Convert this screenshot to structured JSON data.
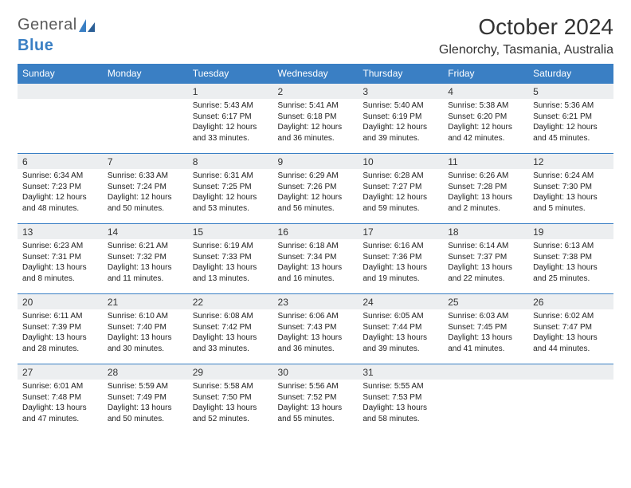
{
  "logo": {
    "word1": "General",
    "word2": "Blue"
  },
  "title": "October 2024",
  "location": "Glenorchy, Tasmania, Australia",
  "colors": {
    "header_bg": "#3a7fc4",
    "header_text": "#ffffff",
    "daynum_bg": "#eceef0",
    "rule": "#3a7fc4",
    "text": "#222222",
    "page_bg": "#ffffff"
  },
  "dayNames": [
    "Sunday",
    "Monday",
    "Tuesday",
    "Wednesday",
    "Thursday",
    "Friday",
    "Saturday"
  ],
  "weeks": [
    [
      null,
      null,
      {
        "n": "1",
        "sr": "5:43 AM",
        "ss": "6:17 PM",
        "dl": "12 hours and 33 minutes."
      },
      {
        "n": "2",
        "sr": "5:41 AM",
        "ss": "6:18 PM",
        "dl": "12 hours and 36 minutes."
      },
      {
        "n": "3",
        "sr": "5:40 AM",
        "ss": "6:19 PM",
        "dl": "12 hours and 39 minutes."
      },
      {
        "n": "4",
        "sr": "5:38 AM",
        "ss": "6:20 PM",
        "dl": "12 hours and 42 minutes."
      },
      {
        "n": "5",
        "sr": "5:36 AM",
        "ss": "6:21 PM",
        "dl": "12 hours and 45 minutes."
      }
    ],
    [
      {
        "n": "6",
        "sr": "6:34 AM",
        "ss": "7:23 PM",
        "dl": "12 hours and 48 minutes."
      },
      {
        "n": "7",
        "sr": "6:33 AM",
        "ss": "7:24 PM",
        "dl": "12 hours and 50 minutes."
      },
      {
        "n": "8",
        "sr": "6:31 AM",
        "ss": "7:25 PM",
        "dl": "12 hours and 53 minutes."
      },
      {
        "n": "9",
        "sr": "6:29 AM",
        "ss": "7:26 PM",
        "dl": "12 hours and 56 minutes."
      },
      {
        "n": "10",
        "sr": "6:28 AM",
        "ss": "7:27 PM",
        "dl": "12 hours and 59 minutes."
      },
      {
        "n": "11",
        "sr": "6:26 AM",
        "ss": "7:28 PM",
        "dl": "13 hours and 2 minutes."
      },
      {
        "n": "12",
        "sr": "6:24 AM",
        "ss": "7:30 PM",
        "dl": "13 hours and 5 minutes."
      }
    ],
    [
      {
        "n": "13",
        "sr": "6:23 AM",
        "ss": "7:31 PM",
        "dl": "13 hours and 8 minutes."
      },
      {
        "n": "14",
        "sr": "6:21 AM",
        "ss": "7:32 PM",
        "dl": "13 hours and 11 minutes."
      },
      {
        "n": "15",
        "sr": "6:19 AM",
        "ss": "7:33 PM",
        "dl": "13 hours and 13 minutes."
      },
      {
        "n": "16",
        "sr": "6:18 AM",
        "ss": "7:34 PM",
        "dl": "13 hours and 16 minutes."
      },
      {
        "n": "17",
        "sr": "6:16 AM",
        "ss": "7:36 PM",
        "dl": "13 hours and 19 minutes."
      },
      {
        "n": "18",
        "sr": "6:14 AM",
        "ss": "7:37 PM",
        "dl": "13 hours and 22 minutes."
      },
      {
        "n": "19",
        "sr": "6:13 AM",
        "ss": "7:38 PM",
        "dl": "13 hours and 25 minutes."
      }
    ],
    [
      {
        "n": "20",
        "sr": "6:11 AM",
        "ss": "7:39 PM",
        "dl": "13 hours and 28 minutes."
      },
      {
        "n": "21",
        "sr": "6:10 AM",
        "ss": "7:40 PM",
        "dl": "13 hours and 30 minutes."
      },
      {
        "n": "22",
        "sr": "6:08 AM",
        "ss": "7:42 PM",
        "dl": "13 hours and 33 minutes."
      },
      {
        "n": "23",
        "sr": "6:06 AM",
        "ss": "7:43 PM",
        "dl": "13 hours and 36 minutes."
      },
      {
        "n": "24",
        "sr": "6:05 AM",
        "ss": "7:44 PM",
        "dl": "13 hours and 39 minutes."
      },
      {
        "n": "25",
        "sr": "6:03 AM",
        "ss": "7:45 PM",
        "dl": "13 hours and 41 minutes."
      },
      {
        "n": "26",
        "sr": "6:02 AM",
        "ss": "7:47 PM",
        "dl": "13 hours and 44 minutes."
      }
    ],
    [
      {
        "n": "27",
        "sr": "6:01 AM",
        "ss": "7:48 PM",
        "dl": "13 hours and 47 minutes."
      },
      {
        "n": "28",
        "sr": "5:59 AM",
        "ss": "7:49 PM",
        "dl": "13 hours and 50 minutes."
      },
      {
        "n": "29",
        "sr": "5:58 AM",
        "ss": "7:50 PM",
        "dl": "13 hours and 52 minutes."
      },
      {
        "n": "30",
        "sr": "5:56 AM",
        "ss": "7:52 PM",
        "dl": "13 hours and 55 minutes."
      },
      {
        "n": "31",
        "sr": "5:55 AM",
        "ss": "7:53 PM",
        "dl": "13 hours and 58 minutes."
      },
      null,
      null
    ]
  ],
  "labels": {
    "sunrise": "Sunrise: ",
    "sunset": "Sunset: ",
    "daylight": "Daylight: "
  }
}
